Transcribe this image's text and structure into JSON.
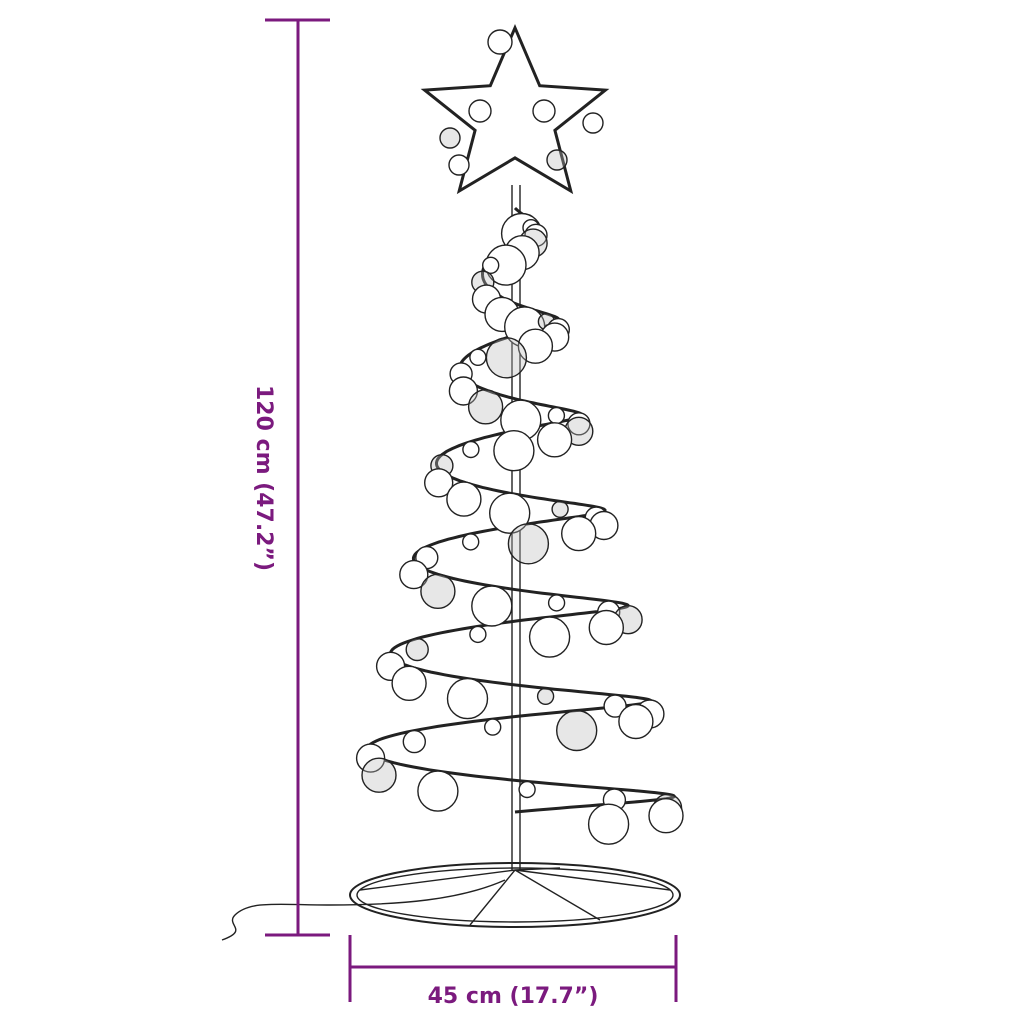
{
  "dimensions": {
    "height_label": "120 cm (47.2”)",
    "width_label": "45 cm (17.7”)"
  },
  "colors": {
    "dimension": "#7b1a7e",
    "line": "#222222",
    "ornament_shade": "#bbbbbb"
  }
}
